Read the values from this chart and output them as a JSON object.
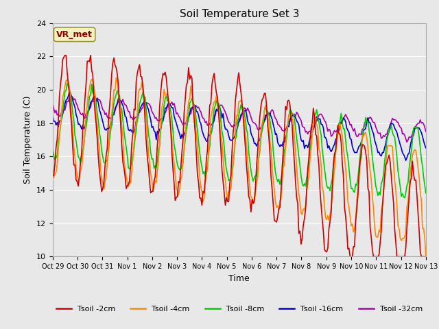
{
  "title": "Soil Temperature Set 3",
  "xlabel": "Time",
  "ylabel": "Soil Temperature (C)",
  "ylim": [
    10,
    24
  ],
  "yticks": [
    10,
    12,
    14,
    16,
    18,
    20,
    22,
    24
  ],
  "background_color": "#e8e8e8",
  "grid_color": "white",
  "annotation_text": "VR_met",
  "annotation_color": "#8b0000",
  "annotation_bg": "#f5f0c0",
  "annotation_edge": "#999944",
  "line_colors": [
    "#cc0000",
    "#ff8800",
    "#00cc00",
    "#0000cc",
    "#aa00aa"
  ],
  "line_widths": [
    1.2,
    1.2,
    1.2,
    1.2,
    1.2
  ],
  "legend_labels": [
    "Tsoil -2cm",
    "Tsoil -4cm",
    "Tsoil -8cm",
    "Tsoil -16cm",
    "Tsoil -32cm"
  ],
  "x_tick_labels": [
    "Oct 29",
    "Oct 30",
    "Oct 31",
    "Nov 1",
    "Nov 2",
    "Nov 3",
    "Nov 4",
    "Nov 5",
    "Nov 6",
    "Nov 7",
    "Nov 8",
    "Nov 9",
    "Nov 10",
    "Nov 11",
    "Nov 12",
    "Nov 13"
  ],
  "num_points": 336,
  "num_days": 15
}
